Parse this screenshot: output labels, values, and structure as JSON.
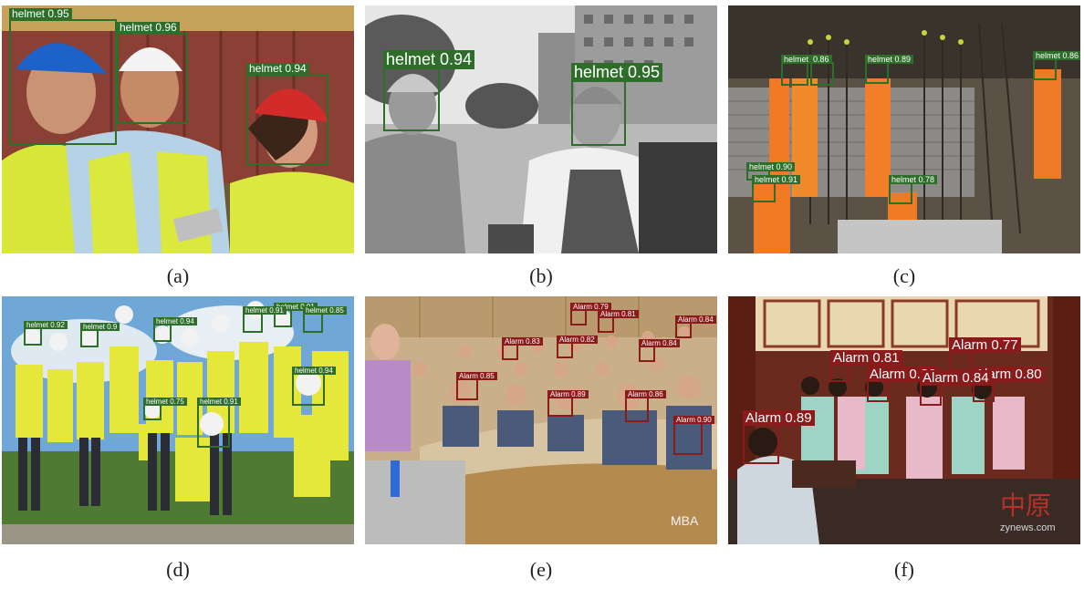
{
  "figure": {
    "panels": [
      {
        "caption": "(a)",
        "detections": [
          {
            "label": "helmet 0.95"
          },
          {
            "label": "helmet 0.96"
          },
          {
            "label": "helmet 0.94"
          }
        ]
      },
      {
        "caption": "(b)",
        "detections": [
          {
            "label": "helmet 0.94"
          },
          {
            "label": "helmet 0.95"
          }
        ]
      },
      {
        "caption": "(c)",
        "detections": [
          {
            "label": "helmet 0.87"
          },
          {
            "label": "0.86"
          },
          {
            "label": "helmet 0.89"
          },
          {
            "label": "helmet 0.86"
          },
          {
            "label": "helmet 0.90"
          },
          {
            "label": "helmet 0.91"
          },
          {
            "label": "helmet 0.78"
          }
        ]
      },
      {
        "caption": "(d)",
        "detections": [
          {
            "label": "helmet 0.92"
          },
          {
            "label": "helmet 0.9"
          },
          {
            "label": "helmet 0.94"
          },
          {
            "label": "helmet 0.91"
          },
          {
            "label": "helmet 0.85"
          },
          {
            "label": "helmet 0.94"
          },
          {
            "label": "helmet 0.75"
          },
          {
            "label": "helmet 0.91"
          },
          {
            "label": "helmet 0.91"
          }
        ]
      },
      {
        "caption": "(e)",
        "detections": [
          {
            "label": "Alarm 0.79"
          },
          {
            "label": "Alarm 0.81"
          },
          {
            "label": "Alarm 0.84"
          },
          {
            "label": "Alarm 0.82"
          },
          {
            "label": "Alarm 0.83"
          },
          {
            "label": "Alarm 0.84"
          },
          {
            "label": "Alarm 0.85"
          },
          {
            "label": "Alarm 0.89"
          },
          {
            "label": "Alarm 0.86"
          },
          {
            "label": "Alarm 0.90"
          }
        ],
        "watermark": "MBA"
      },
      {
        "caption": "(f)",
        "detections": [
          {
            "label": "Alarm 0.77"
          },
          {
            "label": "Alarm 0.81"
          },
          {
            "label": "Alarm 0.86"
          },
          {
            "label": "Alarm 0.80"
          },
          {
            "label": "Alarm 0.84"
          },
          {
            "label": "Alarm 0.89"
          }
        ],
        "watermark": "中原",
        "watermark_url": "zynews.com"
      }
    ]
  }
}
